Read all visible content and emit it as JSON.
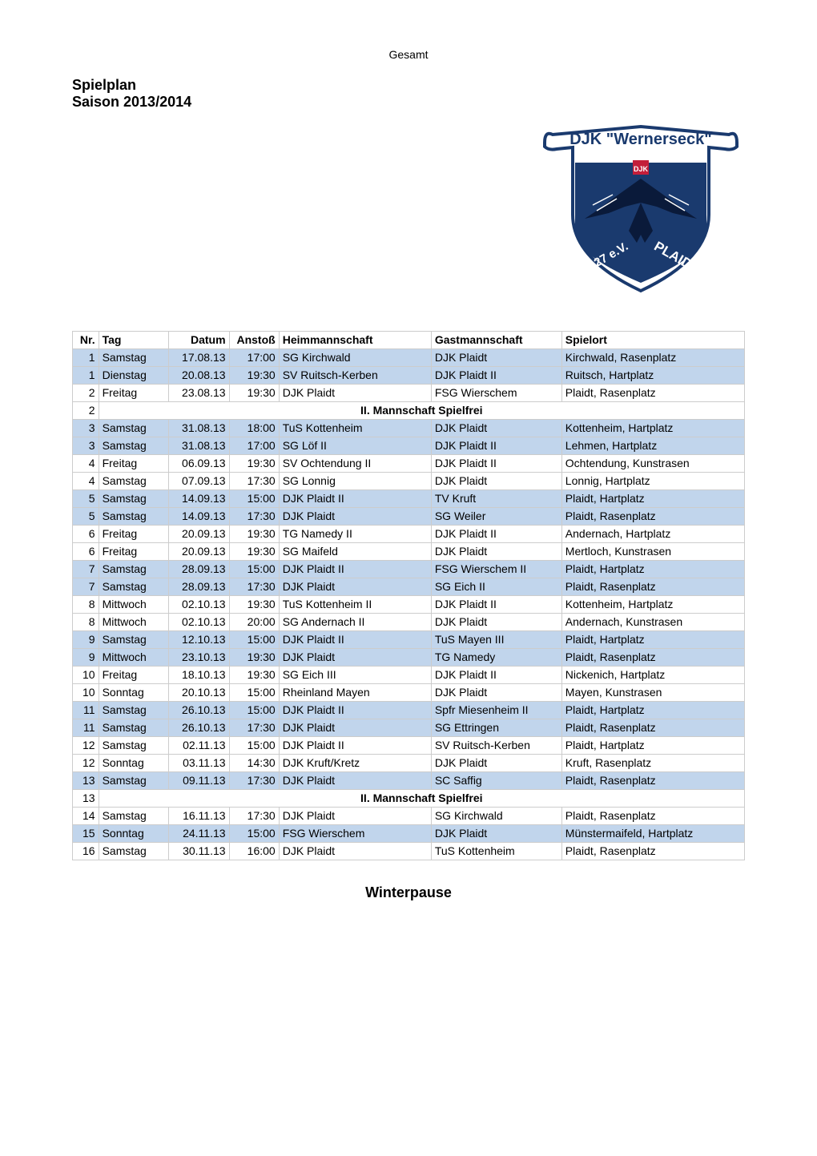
{
  "header_label": "Gesamt",
  "title": {
    "line1": "Spielplan",
    "line2": "Saison 2013/2014"
  },
  "logo": {
    "top_text": "DJK \"Wernerseck\"",
    "bottom_left": "1927 e.V.",
    "bottom_right": "PLAIDT",
    "colors": {
      "shield_border": "#1a3a6e",
      "shield_fill": "#ffffff",
      "banner_fill": "#1a3a6e",
      "text": "#1a3a6e",
      "eagle": "#0a1a3a",
      "accent_red": "#c41e3a"
    }
  },
  "columns": {
    "nr": "Nr.",
    "tag": "Tag",
    "datum": "Datum",
    "anstoss": "Anstoß",
    "heim": "Heimmannschaft",
    "gast": "Gastmannschaft",
    "ort": "Spielort"
  },
  "spielfrei_text": "II. Mannschaft Spielfrei",
  "winterpause": "Winterpause",
  "highlight_color": "#c1d5ec",
  "rows": [
    {
      "nr": "1",
      "tag": "Samstag",
      "datum": "17.08.13",
      "anstoss": "17:00",
      "heim": "SG Kirchwald",
      "gast": "DJK Plaidt",
      "ort": "Kirchwald, Rasenplatz",
      "hl": true
    },
    {
      "nr": "1",
      "tag": "Dienstag",
      "datum": "20.08.13",
      "anstoss": "19:30",
      "heim": "SV Ruitsch-Kerben",
      "gast": "DJK Plaidt II",
      "ort": "Ruitsch, Hartplatz",
      "hl": true
    },
    {
      "nr": "2",
      "tag": "Freitag",
      "datum": "23.08.13",
      "anstoss": "19:30",
      "heim": "DJK Plaidt",
      "gast": "FSG Wierschem",
      "ort": "Plaidt, Rasenplatz",
      "hl": false
    },
    {
      "nr": "2",
      "spielfrei": true
    },
    {
      "nr": "3",
      "tag": "Samstag",
      "datum": "31.08.13",
      "anstoss": "18:00",
      "heim": "TuS Kottenheim",
      "gast": "DJK Plaidt",
      "ort": "Kottenheim, Hartplatz",
      "hl": true
    },
    {
      "nr": "3",
      "tag": "Samstag",
      "datum": "31.08.13",
      "anstoss": "17:00",
      "heim": "SG Löf II",
      "gast": "DJK Plaidt II",
      "ort": "Lehmen, Hartplatz",
      "hl": true
    },
    {
      "nr": "4",
      "tag": "Freitag",
      "datum": "06.09.13",
      "anstoss": "19:30",
      "heim": "SV Ochtendung II",
      "gast": "DJK Plaidt II",
      "ort": "Ochtendung, Kunstrasen",
      "hl": false
    },
    {
      "nr": "4",
      "tag": "Samstag",
      "datum": "07.09.13",
      "anstoss": "17:30",
      "heim": "SG Lonnig",
      "gast": "DJK Plaidt",
      "ort": "Lonnig, Hartplatz",
      "hl": false
    },
    {
      "nr": "5",
      "tag": "Samstag",
      "datum": "14.09.13",
      "anstoss": "15:00",
      "heim": "DJK Plaidt II",
      "gast": "TV Kruft",
      "ort": "Plaidt, Hartplatz",
      "hl": true
    },
    {
      "nr": "5",
      "tag": "Samstag",
      "datum": "14.09.13",
      "anstoss": "17:30",
      "heim": "DJK Plaidt",
      "gast": "SG Weiler",
      "ort": "Plaidt, Rasenplatz",
      "hl": true
    },
    {
      "nr": "6",
      "tag": "Freitag",
      "datum": "20.09.13",
      "anstoss": "19:30",
      "heim": "TG Namedy II",
      "gast": "DJK Plaidt II",
      "ort": "Andernach, Hartplatz",
      "hl": false
    },
    {
      "nr": "6",
      "tag": "Freitag",
      "datum": "20.09.13",
      "anstoss": "19:30",
      "heim": "SG Maifeld",
      "gast": "DJK Plaidt",
      "ort": "Mertloch, Kunstrasen",
      "hl": false
    },
    {
      "nr": "7",
      "tag": "Samstag",
      "datum": "28.09.13",
      "anstoss": "15:00",
      "heim": "DJK Plaidt II",
      "gast": "FSG Wierschem II",
      "ort": "Plaidt, Hartplatz",
      "hl": true
    },
    {
      "nr": "7",
      "tag": "Samstag",
      "datum": "28.09.13",
      "anstoss": "17:30",
      "heim": "DJK Plaidt",
      "gast": "SG Eich II",
      "ort": "Plaidt, Rasenplatz",
      "hl": true
    },
    {
      "nr": "8",
      "tag": "Mittwoch",
      "datum": "02.10.13",
      "anstoss": "19:30",
      "heim": "TuS Kottenheim II",
      "gast": "DJK Plaidt II",
      "ort": "Kottenheim, Hartplatz",
      "hl": false
    },
    {
      "nr": "8",
      "tag": "Mittwoch",
      "datum": "02.10.13",
      "anstoss": "20:00",
      "heim": "SG Andernach II",
      "gast": "DJK Plaidt",
      "ort": "Andernach, Kunstrasen",
      "hl": false
    },
    {
      "nr": "9",
      "tag": "Samstag",
      "datum": "12.10.13",
      "anstoss": "15:00",
      "heim": "DJK Plaidt II",
      "gast": "TuS Mayen III",
      "ort": "Plaidt, Hartplatz",
      "hl": true
    },
    {
      "nr": "9",
      "tag": "Mittwoch",
      "datum": "23.10.13",
      "anstoss": "19:30",
      "heim": "DJK Plaidt",
      "gast": "TG Namedy",
      "ort": "Plaidt, Rasenplatz",
      "hl": true
    },
    {
      "nr": "10",
      "tag": "Freitag",
      "datum": "18.10.13",
      "anstoss": "19:30",
      "heim": "SG Eich III",
      "gast": "DJK Plaidt II",
      "ort": "Nickenich, Hartplatz",
      "hl": false
    },
    {
      "nr": "10",
      "tag": "Sonntag",
      "datum": "20.10.13",
      "anstoss": "15:00",
      "heim": "Rheinland Mayen",
      "gast": "DJK Plaidt",
      "ort": "Mayen, Kunstrasen",
      "hl": false
    },
    {
      "nr": "11",
      "tag": "Samstag",
      "datum": "26.10.13",
      "anstoss": "15:00",
      "heim": "DJK Plaidt II",
      "gast": "Spfr Miesenheim II",
      "ort": "Plaidt, Hartplatz",
      "hl": true
    },
    {
      "nr": "11",
      "tag": "Samstag",
      "datum": "26.10.13",
      "anstoss": "17:30",
      "heim": "DJK Plaidt",
      "gast": "SG Ettringen",
      "ort": "Plaidt, Rasenplatz",
      "hl": true
    },
    {
      "nr": "12",
      "tag": "Samstag",
      "datum": "02.11.13",
      "anstoss": "15:00",
      "heim": "DJK Plaidt II",
      "gast": "SV Ruitsch-Kerben",
      "ort": "Plaidt, Hartplatz",
      "hl": false
    },
    {
      "nr": "12",
      "tag": "Sonntag",
      "datum": "03.11.13",
      "anstoss": "14:30",
      "heim": "DJK Kruft/Kretz",
      "gast": "DJK Plaidt",
      "ort": "Kruft, Rasenplatz",
      "hl": false
    },
    {
      "nr": "13",
      "tag": "Samstag",
      "datum": "09.11.13",
      "anstoss": "17:30",
      "heim": "DJK Plaidt",
      "gast": "SC Saffig",
      "ort": "Plaidt, Rasenplatz",
      "hl": true
    },
    {
      "nr": "13",
      "spielfrei": true
    },
    {
      "nr": "14",
      "tag": "Samstag",
      "datum": "16.11.13",
      "anstoss": "17:30",
      "heim": "DJK Plaidt",
      "gast": "SG Kirchwald",
      "ort": "Plaidt, Rasenplatz",
      "hl": false
    },
    {
      "nr": "15",
      "tag": "Sonntag",
      "datum": "24.11.13",
      "anstoss": "15:00",
      "heim": "FSG Wierschem",
      "gast": "DJK Plaidt",
      "ort": "Münstermaifeld, Hartplatz",
      "hl": true
    },
    {
      "nr": "16",
      "tag": "Samstag",
      "datum": "30.11.13",
      "anstoss": "16:00",
      "heim": "DJK Plaidt",
      "gast": "TuS Kottenheim",
      "ort": "Plaidt, Rasenplatz",
      "hl": false
    }
  ]
}
